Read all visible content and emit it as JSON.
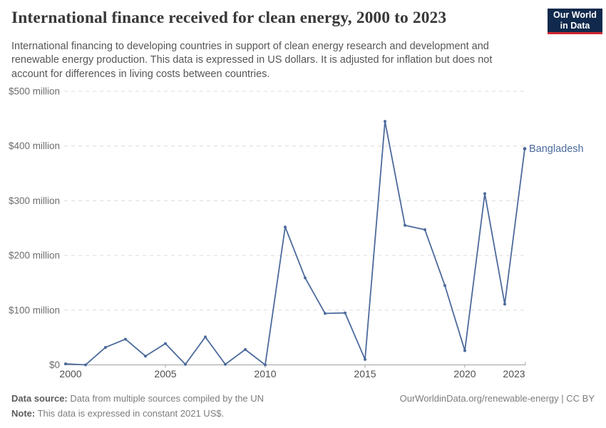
{
  "header": {
    "title": "International finance received for clean energy, 2000 to 2023",
    "subtitle": "International financing to developing countries in support of clean energy research and development and renewable energy production. This data is expressed in US dollars. It is adjusted for inflation but does not account for differences in living costs between countries.",
    "logo": {
      "line1": "Our World",
      "line2": "in Data"
    }
  },
  "chart_data": {
    "type": "line",
    "title": "International finance received for clean energy, 2000 to 2023",
    "entity_label": "Bangladesh",
    "unit": "US$ million",
    "x": [
      2000,
      2001,
      2002,
      2003,
      2004,
      2005,
      2006,
      2007,
      2008,
      2009,
      2010,
      2011,
      2012,
      2013,
      2014,
      2015,
      2016,
      2017,
      2018,
      2019,
      2020,
      2021,
      2022,
      2023
    ],
    "series": [
      {
        "name": "Bangladesh",
        "values": [
          2,
          0,
          32,
          47,
          16,
          39,
          1,
          51,
          1,
          28,
          0,
          252,
          159,
          94,
          95,
          10,
          445,
          255,
          247,
          145,
          26,
          313,
          111,
          395
        ]
      }
    ],
    "xlim": [
      2000,
      2023
    ],
    "ylim": [
      0,
      500
    ],
    "x_ticks": [
      2000,
      2005,
      2010,
      2015,
      2020,
      2023
    ],
    "y_ticks": [
      0,
      100,
      200,
      300,
      400,
      500
    ],
    "y_tick_labels": [
      "$0",
      "$100 million",
      "$200 million",
      "$300 million",
      "$400 million",
      "$500 million"
    ],
    "grid": "horizontal-dashed",
    "legend_position": "end-of-line-label"
  },
  "colors": {
    "line": "#4c6a9c",
    "grid": "#dcdcdc",
    "axis": "#a1a1a1",
    "y_label": "#6e6e6e",
    "x_label": "#4f4f4f",
    "entity_label": "#4c6a9c"
  },
  "footer": {
    "source_label": "Data source:",
    "source_text": "Data from multiple sources compiled by the UN",
    "note_label": "Note:",
    "note_text": "This data is expressed in constant 2021 US$.",
    "link": "OurWorldinData.org/renewable-energy | CC BY"
  }
}
